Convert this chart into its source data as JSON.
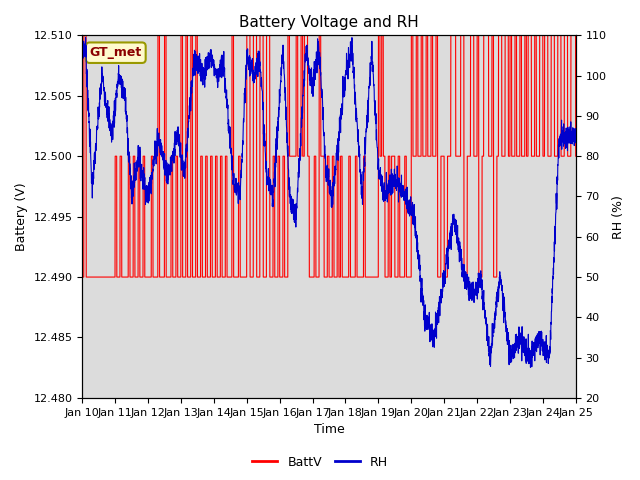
{
  "title": "Battery Voltage and RH",
  "xlabel": "Time",
  "ylabel_left": "Battery (V)",
  "ylabel_right": "RH (%)",
  "ylim_left": [
    12.48,
    12.51
  ],
  "ylim_right": [
    20,
    110
  ],
  "xlim": [
    0,
    15
  ],
  "x_tick_labels": [
    "Jan 10",
    "Jan 11",
    "Jan 12",
    "Jan 13",
    "Jan 14",
    "Jan 15",
    "Jan 16",
    "Jan 17",
    "Jan 18",
    "Jan 19",
    "Jan 20",
    "Jan 21",
    "Jan 22",
    "Jan 23",
    "Jan 24",
    "Jan 25"
  ],
  "annotation_text": "GT_met",
  "annotation_bg": "#FFFACD",
  "annotation_border": "#999900",
  "plot_bg": "#DCDCDC",
  "batt_color": "#FF0000",
  "rh_color": "#0000CC",
  "legend_labels": [
    "BattV",
    "RH"
  ],
  "title_fontsize": 11,
  "axis_fontsize": 9,
  "tick_fontsize": 8
}
